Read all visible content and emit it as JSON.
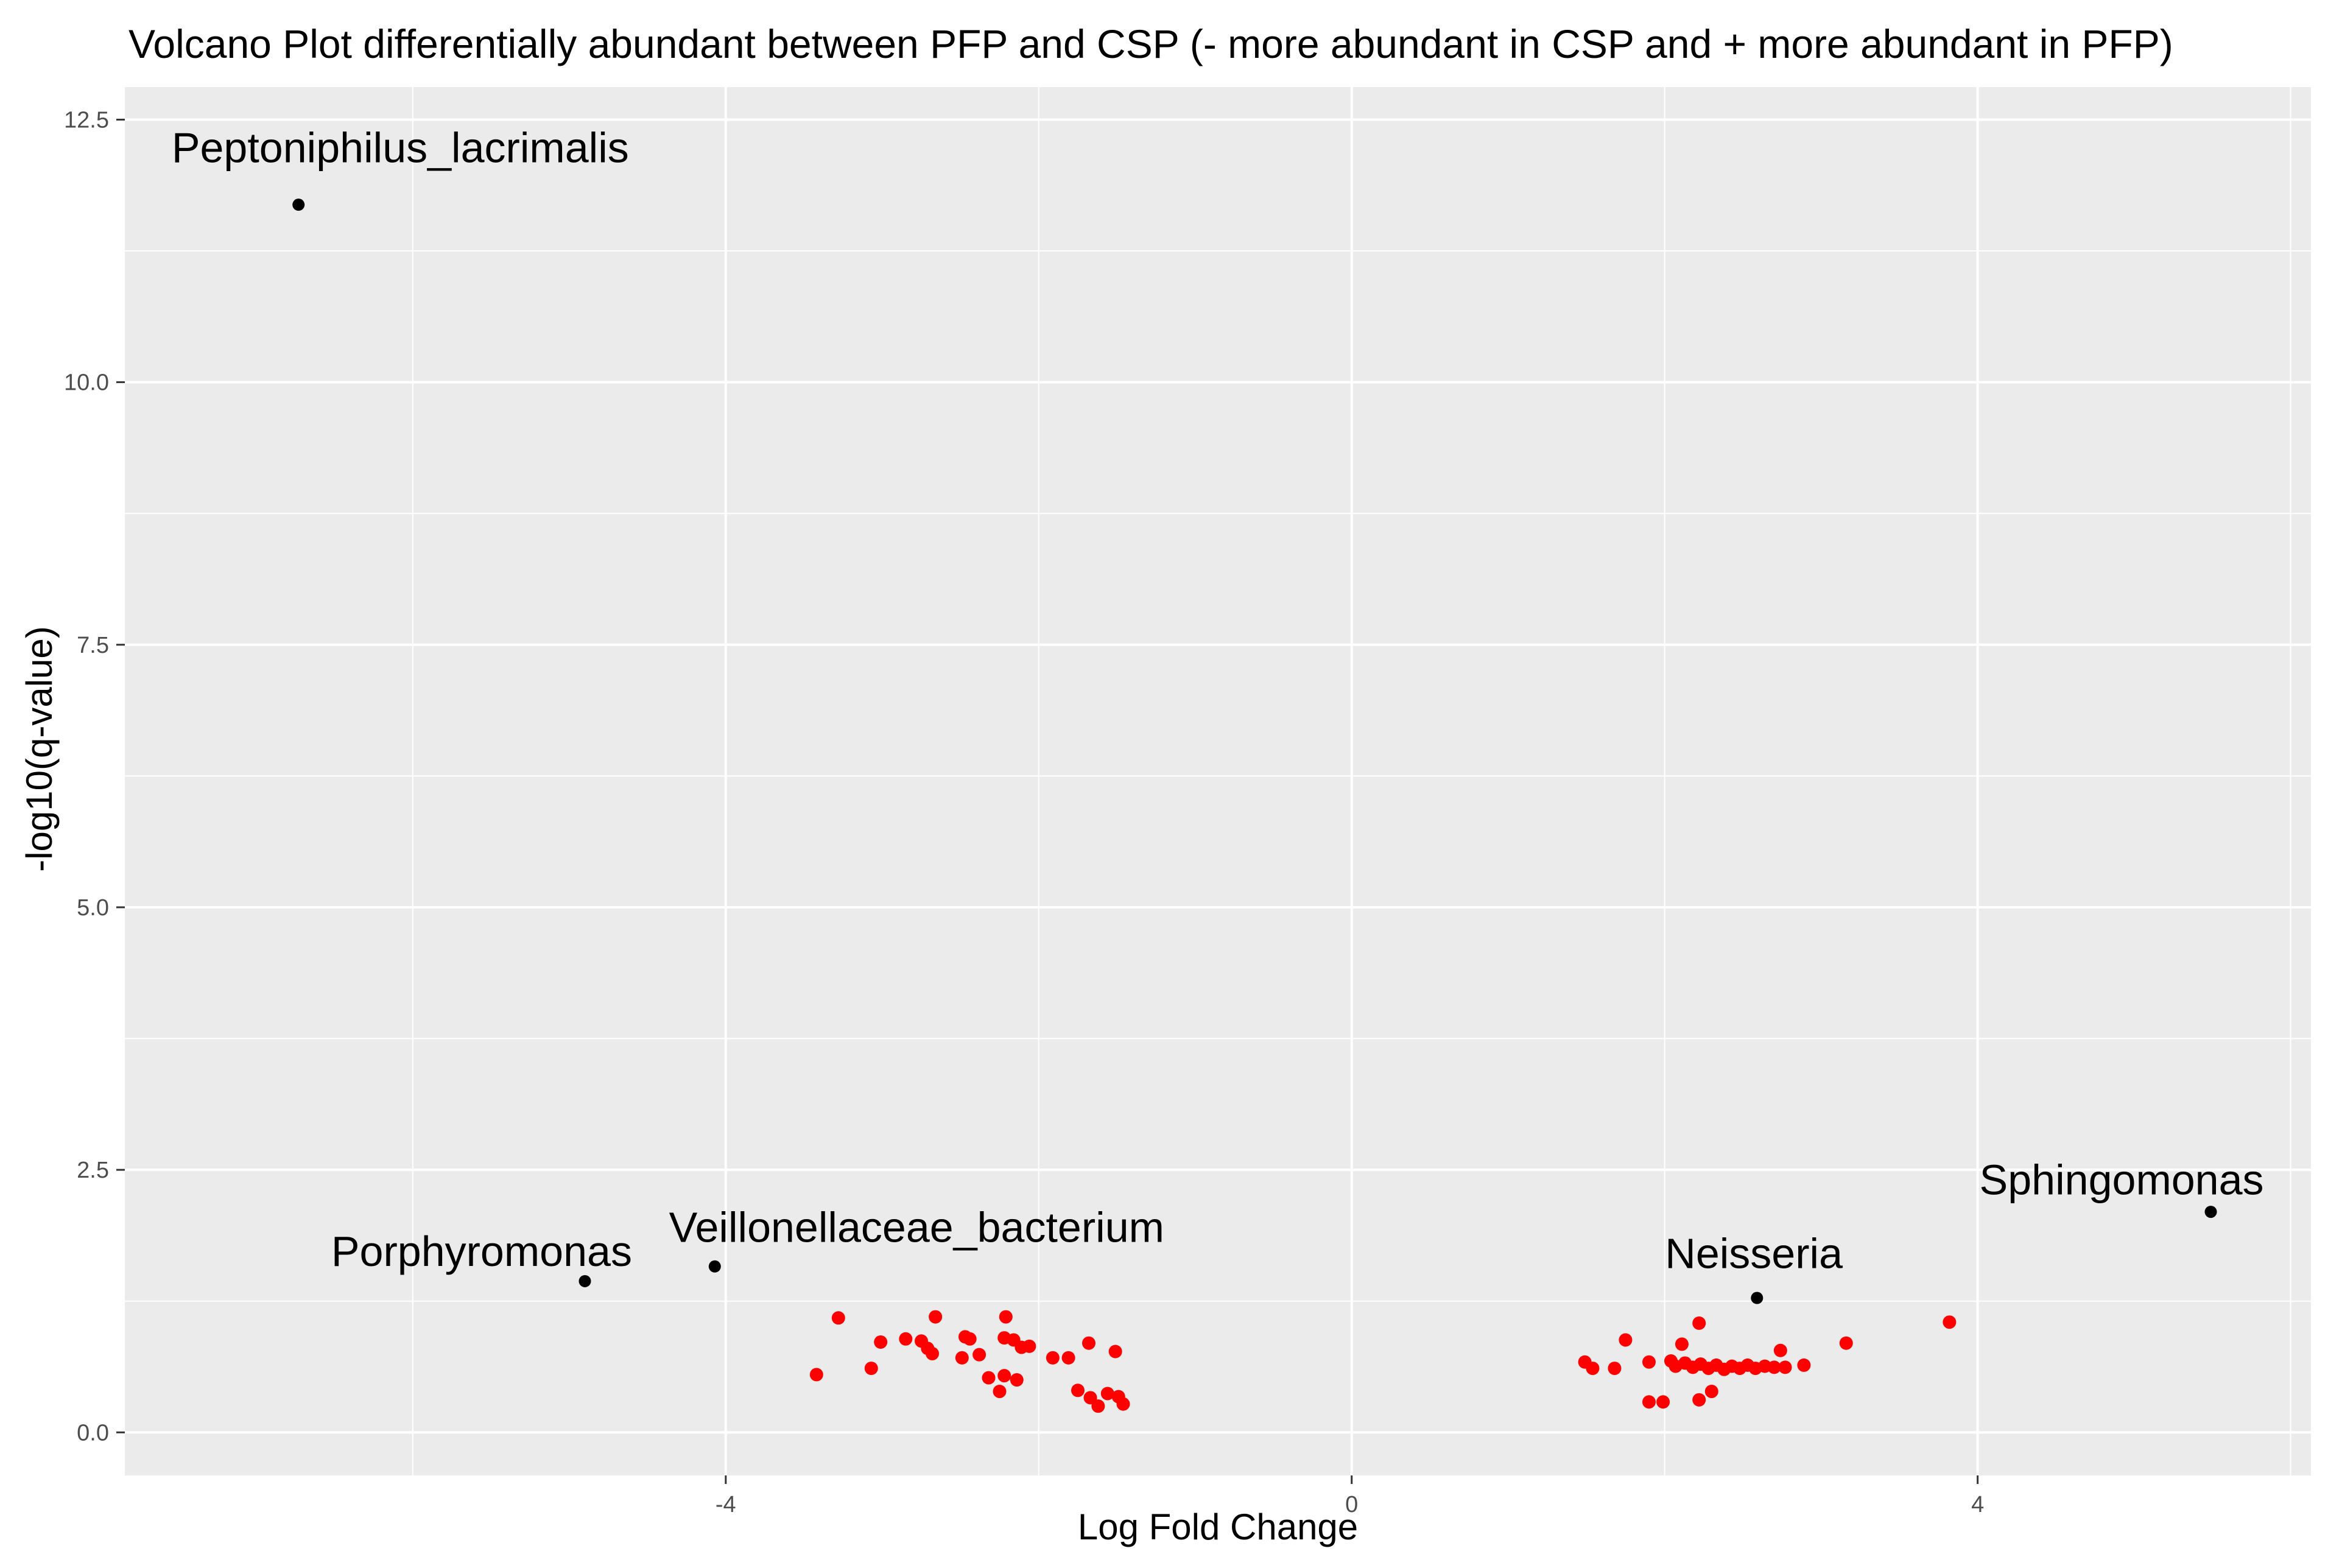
{
  "colors": {
    "panel_background": "#EBEBEB",
    "gridline": "#FFFFFF",
    "tick_mark": "#333333",
    "tick_text": "#4D4D4D",
    "title_text": "#000000",
    "significant_point": "#FF0000",
    "labeled_point": "#000000"
  },
  "chart_data": {
    "type": "scatter",
    "title": "Volcano Plot differentially abundant between PFP and CSP (- more abundant in CSP and + more abundant in PFP)",
    "xlabel": "Log Fold Change",
    "ylabel": "-log10(q-value)",
    "xlim": [
      -7.84,
      6.13
    ],
    "ylim": [
      -0.41,
      12.81
    ],
    "grid": true,
    "legend_position": "none",
    "x_ticks": [
      {
        "value": -4,
        "label": "-4"
      },
      {
        "value": 0,
        "label": "0"
      },
      {
        "value": 4,
        "label": "4"
      }
    ],
    "y_ticks": [
      {
        "value": 0,
        "label": "0.0"
      },
      {
        "value": 2.5,
        "label": "2.5"
      },
      {
        "value": 5,
        "label": "5.0"
      },
      {
        "value": 7.5,
        "label": "7.5"
      },
      {
        "value": 10,
        "label": "10.0"
      },
      {
        "value": 12.5,
        "label": "12.5"
      }
    ],
    "x_minor_gridlines": [
      -6,
      -2,
      2,
      6
    ],
    "y_minor_gridlines": [
      1.25,
      3.75,
      6.25,
      8.75,
      11.25
    ],
    "series": [
      {
        "name": "labeled_taxa",
        "color": "#000000",
        "point_radius": 10,
        "points": [
          {
            "x": -6.73,
            "y": 11.69,
            "label": "Peptoniphilus_lacrimalis",
            "label_x": -6.08,
            "label_y": 12.24
          },
          {
            "x": -4.9,
            "y": 1.44,
            "label": "Porphyromonas",
            "label_x": -5.56,
            "label_y": 1.73
          },
          {
            "x": -4.07,
            "y": 1.58,
            "label": "Veillonellaceae_bacterium",
            "label_x": -2.78,
            "label_y": 1.96
          },
          {
            "x": 2.59,
            "y": 1.28,
            "label": "Neisseria",
            "label_x": 2.57,
            "label_y": 1.71
          },
          {
            "x": 5.49,
            "y": 2.1,
            "label": "Sphingomonas",
            "label_x": 4.92,
            "label_y": 2.41
          }
        ]
      },
      {
        "name": "significant_taxa",
        "color": "#FF0000",
        "point_radius": 11,
        "points": [
          [
            -3.42,
            0.55
          ],
          [
            -3.28,
            1.09
          ],
          [
            -3.07,
            0.61
          ],
          [
            -3.01,
            0.86
          ],
          [
            -2.85,
            0.89
          ],
          [
            -2.75,
            0.87
          ],
          [
            -2.71,
            0.8
          ],
          [
            -2.68,
            0.75
          ],
          [
            -2.66,
            1.1
          ],
          [
            -2.49,
            0.71
          ],
          [
            -2.47,
            0.91
          ],
          [
            -2.44,
            0.89
          ],
          [
            -2.38,
            0.74
          ],
          [
            -2.32,
            0.52
          ],
          [
            -2.25,
            0.39
          ],
          [
            -2.22,
            0.9
          ],
          [
            -2.22,
            0.54
          ],
          [
            -2.21,
            1.1
          ],
          [
            -2.16,
            0.88
          ],
          [
            -2.14,
            0.5
          ],
          [
            -2.11,
            0.81
          ],
          [
            -2.06,
            0.82
          ],
          [
            -1.91,
            0.71
          ],
          [
            -1.81,
            0.71
          ],
          [
            -1.75,
            0.4
          ],
          [
            -1.68,
            0.85
          ],
          [
            -1.67,
            0.33
          ],
          [
            -1.62,
            0.25
          ],
          [
            -1.56,
            0.37
          ],
          [
            -1.51,
            0.77
          ],
          [
            -1.49,
            0.34
          ],
          [
            -1.46,
            0.27
          ],
          [
            1.49,
            0.67
          ],
          [
            1.54,
            0.61
          ],
          [
            1.68,
            0.61
          ],
          [
            1.75,
            0.88
          ],
          [
            1.9,
            0.67
          ],
          [
            1.9,
            0.29
          ],
          [
            1.99,
            0.29
          ],
          [
            2.04,
            0.68
          ],
          [
            2.07,
            0.63
          ],
          [
            2.11,
            0.84
          ],
          [
            2.13,
            0.66
          ],
          [
            2.18,
            0.62
          ],
          [
            2.22,
            1.04
          ],
          [
            2.22,
            0.31
          ],
          [
            2.23,
            0.65
          ],
          [
            2.28,
            0.61
          ],
          [
            2.3,
            0.39
          ],
          [
            2.33,
            0.64
          ],
          [
            2.38,
            0.6
          ],
          [
            2.43,
            0.63
          ],
          [
            2.48,
            0.61
          ],
          [
            2.53,
            0.64
          ],
          [
            2.58,
            0.61
          ],
          [
            2.64,
            0.63
          ],
          [
            2.7,
            0.62
          ],
          [
            2.74,
            0.78
          ],
          [
            2.77,
            0.62
          ],
          [
            2.89,
            0.64
          ],
          [
            3.16,
            0.85
          ],
          [
            3.82,
            1.05
          ]
        ]
      }
    ]
  }
}
